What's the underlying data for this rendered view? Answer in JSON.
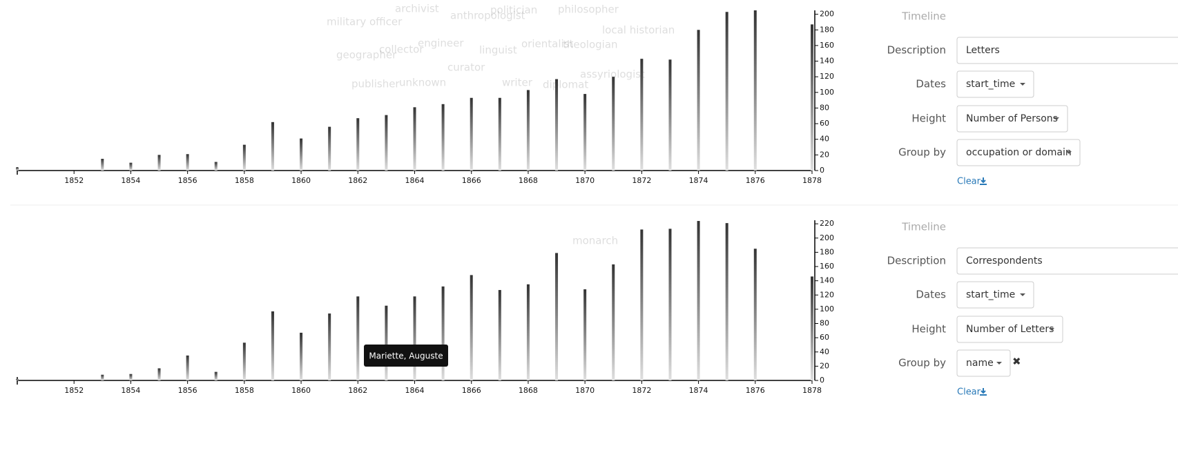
{
  "chart_data": [
    {
      "type": "bar",
      "x": [
        1850,
        1853,
        1854,
        1855,
        1856,
        1857,
        1858,
        1859,
        1860,
        1861,
        1862,
        1863,
        1864,
        1865,
        1866,
        1867,
        1868,
        1869,
        1870,
        1871,
        1872,
        1873,
        1874,
        1875,
        1876,
        1878
      ],
      "values": [
        4,
        15,
        10,
        20,
        21,
        11,
        33,
        62,
        41,
        56,
        67,
        71,
        81,
        85,
        93,
        93,
        103,
        117,
        98,
        120,
        143,
        142,
        180,
        203,
        205,
        187
      ],
      "xlim": [
        1850,
        1878
      ],
      "xticks": [
        1852,
        1854,
        1856,
        1858,
        1860,
        1862,
        1864,
        1866,
        1868,
        1870,
        1872,
        1874,
        1876,
        1878
      ],
      "ylim": [
        0,
        205
      ],
      "yticks": [
        0,
        20,
        40,
        60,
        80,
        100,
        120,
        140,
        160,
        180,
        200
      ],
      "background_words": [
        "archivist",
        "politician",
        "philosopher",
        "military officer",
        "anthropologist",
        "local historian",
        "geographer",
        "collector",
        "engineer",
        "linguist",
        "orientalist",
        "theologian",
        "curator",
        "assyriologist",
        "publisher",
        "unknown",
        "writer",
        "diplomat"
      ]
    },
    {
      "type": "bar",
      "x": [
        1850,
        1853,
        1854,
        1855,
        1856,
        1857,
        1858,
        1859,
        1860,
        1861,
        1862,
        1863,
        1864,
        1865,
        1866,
        1867,
        1868,
        1869,
        1870,
        1871,
        1872,
        1873,
        1874,
        1875,
        1876,
        1878
      ],
      "values": [
        2,
        8,
        9,
        17,
        35,
        12,
        53,
        97,
        67,
        94,
        118,
        105,
        118,
        132,
        148,
        127,
        135,
        179,
        128,
        163,
        212,
        213,
        224,
        221,
        185,
        146
      ],
      "xlim": [
        1850,
        1878
      ],
      "xticks": [
        1852,
        1854,
        1856,
        1858,
        1860,
        1862,
        1864,
        1866,
        1868,
        1870,
        1872,
        1874,
        1876,
        1878
      ],
      "ylim": [
        0,
        225
      ],
      "yticks": [
        0,
        20,
        40,
        60,
        80,
        100,
        120,
        140,
        160,
        180,
        200,
        220
      ],
      "background_words": [
        "monarch"
      ],
      "tooltip": "Mariette, Auguste"
    }
  ],
  "panels": [
    {
      "timeline": "Timeline",
      "description_label": "Description",
      "description": "Letters",
      "dates_label": "Dates",
      "dates": "start_time",
      "height_label": "Height",
      "height": "Number of Persons",
      "group_label": "Group by",
      "group": "occupation or domain",
      "clear": "Clear"
    },
    {
      "timeline": "Timeline",
      "description_label": "Description",
      "description": "Correspondents",
      "dates_label": "Dates",
      "dates": "start_time",
      "height_label": "Height",
      "height": "Number of Letters",
      "group_label": "Group by",
      "group": "name",
      "remove": "✖",
      "clear": "Clear"
    }
  ]
}
